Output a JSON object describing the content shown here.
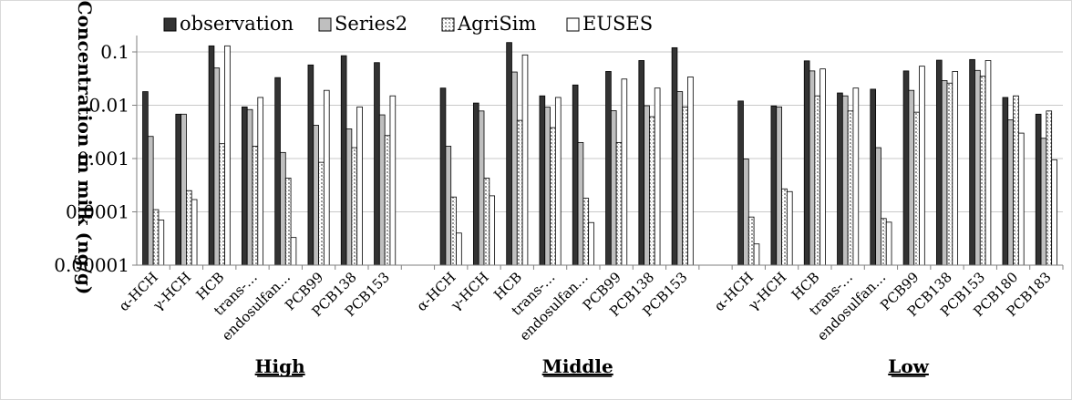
{
  "chart_data": {
    "type": "bar",
    "ylabel": "Concentration in milk (ng/g)",
    "yscale": "log",
    "ylim": [
      1e-05,
      0.1
    ],
    "yticks": [
      "0.00001",
      "0.0001",
      "0.001",
      "0.01",
      "0.1"
    ],
    "legend_position": "top",
    "series_names": [
      "observation",
      "Series2",
      "AgriSim",
      "EUSES"
    ],
    "series_colors": [
      "#333333",
      "#bfbfbf",
      "#e8e8e8",
      "#ffffff"
    ],
    "groups": [
      {
        "name": "High",
        "categories": [
          "α-HCH",
          "γ-HCH",
          "HCB",
          "trans-…",
          "endosulfan…",
          "PCB99",
          "PCB138",
          "PCB153"
        ],
        "series": [
          {
            "values": [
              0.018,
              0.0068,
              0.13,
              0.0093,
              0.033,
              0.057,
              0.085,
              0.063
            ]
          },
          {
            "values": [
              0.0026,
              0.0068,
              0.05,
              0.0083,
              0.0013,
              0.0042,
              0.0036,
              0.0066
            ]
          },
          {
            "values": [
              0.00011,
              0.00025,
              0.0019,
              0.0017,
              0.00043,
              0.00085,
              0.0016,
              0.0027
            ]
          },
          {
            "values": [
              7e-05,
              0.00017,
              0.13,
              0.014,
              3.3e-05,
              0.019,
              0.0093,
              0.015
            ]
          }
        ]
      },
      {
        "name": "Middle",
        "categories": [
          "α-HCH",
          "γ-HCH",
          "HCB",
          "trans-…",
          "endosulfan…",
          "PCB99",
          "PCB138",
          "PCB153"
        ],
        "series": [
          {
            "values": [
              0.021,
              0.011,
              0.15,
              0.015,
              0.024,
              0.043,
              0.069,
              0.12
            ]
          },
          {
            "values": [
              0.0017,
              0.0078,
              0.042,
              0.0092,
              0.002,
              0.0079,
              0.0098,
              0.018
            ]
          },
          {
            "values": [
              0.00019,
              0.00043,
              0.0052,
              0.0038,
              0.00018,
              0.002,
              0.0061,
              0.0093
            ]
          },
          {
            "values": [
              4e-05,
              0.0002,
              0.088,
              0.014,
              6.3e-05,
              0.031,
              0.021,
              0.034
            ]
          }
        ]
      },
      {
        "name": "Low",
        "categories": [
          "α-HCH",
          "γ-HCH",
          "HCB",
          "trans-…",
          "endosulfan…",
          "PCB99",
          "PCB138",
          "PCB153",
          "PCB180",
          "PCB183"
        ],
        "series": [
          {
            "values": [
              0.012,
              0.0097,
              0.068,
              0.017,
              0.02,
              0.044,
              0.07,
              0.072,
              0.014,
              0.0068
            ]
          },
          {
            "values": [
              0.00098,
              0.0093,
              0.044,
              0.015,
              0.0016,
              0.019,
              0.029,
              0.045,
              0.0053,
              0.0024
            ]
          },
          {
            "values": [
              8e-05,
              0.00027,
              0.015,
              0.0078,
              7.5e-05,
              0.0074,
              0.026,
              0.035,
              0.015,
              0.0078
            ]
          },
          {
            "values": [
              2.5e-05,
              0.00024,
              0.048,
              0.021,
              6.4e-05,
              0.054,
              0.043,
              0.069,
              0.003,
              0.00095
            ]
          }
        ]
      }
    ]
  }
}
